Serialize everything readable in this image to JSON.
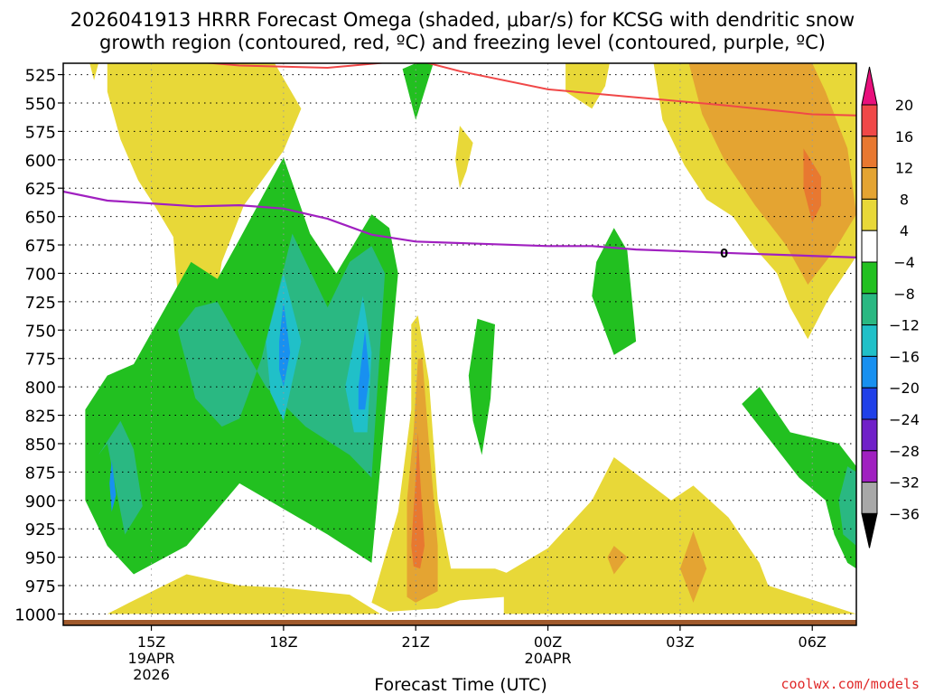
{
  "chart_data": {
    "type": "contour",
    "title_line1": "2026041913 HRRR Forecast Omega (shaded, μbar/s) for KCSG with dendritic snow",
    "title_line2": "growth region (contoured, red, ºC) and freezing level (contoured, purple, ºC)",
    "xlabel": "Forecast Time (UTC)",
    "ylabel": "",
    "x_ticks": [
      {
        "hour": 15,
        "label": "15Z",
        "sub1": "19APR",
        "sub2": "2026"
      },
      {
        "hour": 18,
        "label": "18Z",
        "sub1": "",
        "sub2": ""
      },
      {
        "hour": 21,
        "label": "21Z",
        "sub1": "",
        "sub2": ""
      },
      {
        "hour": 24,
        "label": "00Z",
        "sub1": "20APR",
        "sub2": ""
      },
      {
        "hour": 27,
        "label": "03Z",
        "sub1": "",
        "sub2": ""
      },
      {
        "hour": 30,
        "label": "06Z",
        "sub1": "",
        "sub2": ""
      }
    ],
    "xlim": [
      13,
      31
    ],
    "y_ticks": [
      525,
      550,
      575,
      600,
      625,
      650,
      675,
      700,
      725,
      750,
      775,
      800,
      825,
      850,
      875,
      900,
      925,
      950,
      975,
      1000
    ],
    "ylim": [
      1010,
      515
    ],
    "colorbar": {
      "labels": [
        "20",
        "16",
        "12",
        "8",
        "4",
        "−4",
        "−8",
        "−12",
        "−16",
        "−20",
        "−24",
        "−28",
        "−32",
        "−36"
      ],
      "bands": [
        {
          "from": 20,
          "to": 16,
          "color": "#f04848"
        },
        {
          "from": 16,
          "to": 12,
          "color": "#e87830"
        },
        {
          "from": 12,
          "to": 8,
          "color": "#e4a432"
        },
        {
          "from": 8,
          "to": 4,
          "color": "#e8d838"
        },
        {
          "from": 4,
          "to": -4,
          "color": "#ffffff"
        },
        {
          "from": -4,
          "to": -8,
          "color": "#22c020"
        },
        {
          "from": -8,
          "to": -12,
          "color": "#2ab882"
        },
        {
          "from": -12,
          "to": -16,
          "color": "#20c0c8"
        },
        {
          "from": -16,
          "to": -20,
          "color": "#1890f0"
        },
        {
          "from": -20,
          "to": -24,
          "color": "#2040e8"
        },
        {
          "from": -24,
          "to": -28,
          "color": "#7020c8"
        },
        {
          "from": -28,
          "to": -32,
          "color": "#a020c0"
        },
        {
          "from": -32,
          "to": -36,
          "color": "#a8a8a8"
        }
      ],
      "top_color": "#e8107c",
      "bottom_color": "#000000"
    },
    "freezing_level": {
      "label": "0",
      "label_hour": 28.0,
      "points": [
        [
          13,
          628
        ],
        [
          14,
          636
        ],
        [
          16,
          641
        ],
        [
          17,
          640
        ],
        [
          18,
          643
        ],
        [
          19,
          652
        ],
        [
          20,
          666
        ],
        [
          21,
          672
        ],
        [
          24,
          676
        ],
        [
          25,
          676
        ],
        [
          26,
          679
        ],
        [
          28,
          682
        ],
        [
          31,
          686
        ]
      ]
    },
    "dgz_top": {
      "points": [
        [
          15.8,
          513
        ],
        [
          17,
          517
        ],
        [
          19,
          519
        ],
        [
          21,
          512
        ],
        [
          22,
          522
        ],
        [
          24,
          538
        ],
        [
          26,
          545
        ],
        [
          28,
          552
        ],
        [
          30,
          560
        ],
        [
          31,
          561
        ]
      ]
    },
    "omega_regions": [
      {
        "value": 6,
        "points": [
          [
            14.0,
            515
          ],
          [
            14.0,
            540
          ],
          [
            14.3,
            582
          ],
          [
            14.7,
            618
          ],
          [
            15.1,
            642
          ],
          [
            15.5,
            668
          ],
          [
            15.6,
            720
          ],
          [
            15.9,
            735
          ],
          [
            16.4,
            735
          ],
          [
            16.6,
            690
          ],
          [
            17.1,
            640
          ],
          [
            18.0,
            592
          ],
          [
            18.4,
            555
          ],
          [
            17.8,
            515
          ]
        ]
      },
      {
        "value": 6,
        "points": [
          [
            13.6,
            515
          ],
          [
            13.7,
            530
          ],
          [
            13.8,
            515
          ]
        ]
      },
      {
        "value": 6,
        "points": [
          [
            22.0,
            570
          ],
          [
            22.3,
            585
          ],
          [
            22.15,
            610
          ],
          [
            22.0,
            625
          ],
          [
            21.9,
            600
          ]
        ]
      },
      {
        "value": 6,
        "points": [
          [
            24.4,
            515
          ],
          [
            24.4,
            540
          ],
          [
            25.0,
            555
          ],
          [
            25.3,
            535
          ],
          [
            25.4,
            515
          ]
        ]
      },
      {
        "value": 6,
        "points": [
          [
            26.4,
            515
          ],
          [
            26.6,
            565
          ],
          [
            27.1,
            605
          ],
          [
            27.6,
            635
          ],
          [
            28.2,
            650
          ],
          [
            28.7,
            678
          ],
          [
            29.2,
            700
          ],
          [
            29.5,
            730
          ],
          [
            29.9,
            758
          ],
          [
            30.4,
            720
          ],
          [
            31.0,
            685
          ],
          [
            31.0,
            515
          ]
        ]
      },
      {
        "value": 10,
        "points": [
          [
            27.2,
            515
          ],
          [
            27.5,
            560
          ],
          [
            28.0,
            600
          ],
          [
            28.7,
            640
          ],
          [
            29.4,
            675
          ],
          [
            29.9,
            710
          ],
          [
            30.5,
            680
          ],
          [
            31.0,
            648
          ],
          [
            30.8,
            590
          ],
          [
            30.3,
            540
          ],
          [
            30.0,
            515
          ]
        ]
      },
      {
        "value": 14,
        "points": [
          [
            29.8,
            590
          ],
          [
            30.2,
            615
          ],
          [
            30.2,
            640
          ],
          [
            30.0,
            655
          ],
          [
            29.8,
            625
          ]
        ]
      },
      {
        "value": 6,
        "points": [
          [
            20.0,
            990
          ],
          [
            20.6,
            910
          ],
          [
            20.9,
            820
          ],
          [
            20.9,
            745
          ],
          [
            21.05,
            737
          ],
          [
            21.3,
            795
          ],
          [
            21.5,
            900
          ],
          [
            21.8,
            960
          ],
          [
            22.8,
            960
          ],
          [
            23.5,
            970
          ],
          [
            23.0,
            985
          ],
          [
            22.0,
            988
          ],
          [
            21.5,
            995
          ],
          [
            20.4,
            998
          ]
        ]
      },
      {
        "value": 10,
        "points": [
          [
            20.8,
            985
          ],
          [
            20.8,
            900
          ],
          [
            20.95,
            840
          ],
          [
            21.05,
            775
          ],
          [
            21.15,
            775
          ],
          [
            21.3,
            850
          ],
          [
            21.5,
            940
          ],
          [
            21.5,
            980
          ],
          [
            21.0,
            990
          ]
        ]
      },
      {
        "value": 14,
        "points": [
          [
            20.9,
            940
          ],
          [
            21.0,
            880
          ],
          [
            21.05,
            840
          ],
          [
            21.1,
            880
          ],
          [
            21.2,
            940
          ],
          [
            21.1,
            960
          ],
          [
            20.95,
            958
          ]
        ]
      },
      {
        "value": 6,
        "points": [
          [
            14.0,
            1000
          ],
          [
            14.5,
            990
          ],
          [
            15.8,
            965
          ],
          [
            17.0,
            975
          ],
          [
            18.0,
            977
          ],
          [
            19.5,
            983
          ],
          [
            20.2,
            1000
          ]
        ]
      },
      {
        "value": 6,
        "points": [
          [
            23.0,
            1000
          ],
          [
            23.0,
            965
          ],
          [
            24.0,
            942
          ],
          [
            25.0,
            900
          ],
          [
            25.5,
            862
          ],
          [
            26.8,
            900
          ],
          [
            27.3,
            887
          ],
          [
            28.1,
            915
          ],
          [
            28.8,
            955
          ],
          [
            29.0,
            975
          ],
          [
            31.0,
            1000
          ]
        ]
      },
      {
        "value": 10,
        "points": [
          [
            25.5,
            940
          ],
          [
            25.8,
            950
          ],
          [
            25.5,
            965
          ],
          [
            25.35,
            950
          ]
        ]
      },
      {
        "value": 10,
        "points": [
          [
            27.3,
            927
          ],
          [
            27.6,
            960
          ],
          [
            27.3,
            990
          ],
          [
            27.0,
            960
          ]
        ]
      },
      {
        "value": -6,
        "points": [
          [
            21.0,
            515
          ],
          [
            21.4,
            515
          ],
          [
            21.0,
            565
          ],
          [
            20.7,
            520
          ]
        ]
      },
      {
        "value": -6,
        "points": [
          [
            22.4,
            740
          ],
          [
            22.8,
            745
          ],
          [
            22.7,
            810
          ],
          [
            22.5,
            860
          ],
          [
            22.3,
            830
          ],
          [
            22.2,
            790
          ]
        ]
      },
      {
        "value": -6,
        "points": [
          [
            25.5,
            660
          ],
          [
            25.8,
            680
          ],
          [
            26.0,
            760
          ],
          [
            25.5,
            772
          ],
          [
            25.0,
            720
          ],
          [
            25.1,
            690
          ]
        ]
      },
      {
        "value": -6,
        "points": [
          [
            14.0,
            940
          ],
          [
            14.6,
            965
          ],
          [
            15.8,
            940
          ],
          [
            17.0,
            885
          ],
          [
            19.0,
            930
          ],
          [
            20.0,
            955
          ],
          [
            20.6,
            700
          ],
          [
            20.4,
            660
          ],
          [
            20.0,
            648
          ],
          [
            19.2,
            700
          ],
          [
            18.6,
            665
          ],
          [
            18.0,
            598
          ],
          [
            17.0,
            670
          ],
          [
            16.5,
            705
          ],
          [
            15.9,
            690
          ],
          [
            14.6,
            780
          ],
          [
            14.0,
            790
          ],
          [
            13.5,
            820
          ],
          [
            13.5,
            900
          ]
        ]
      },
      {
        "value": -10,
        "points": [
          [
            14.0,
            850
          ],
          [
            14.4,
            930
          ],
          [
            14.8,
            905
          ],
          [
            14.6,
            855
          ],
          [
            14.3,
            830
          ],
          [
            13.8,
            860
          ]
        ]
      },
      {
        "value": -10,
        "points": [
          [
            15.6,
            750
          ],
          [
            16.0,
            810
          ],
          [
            16.6,
            835
          ],
          [
            17.0,
            828
          ],
          [
            17.5,
            775
          ],
          [
            18.2,
            665
          ],
          [
            19.0,
            730
          ],
          [
            19.5,
            690
          ],
          [
            20.0,
            676
          ],
          [
            20.3,
            700
          ],
          [
            20.0,
            880
          ],
          [
            19.5,
            860
          ],
          [
            18.5,
            835
          ],
          [
            17.6,
            800
          ],
          [
            16.5,
            725
          ],
          [
            16.0,
            730
          ]
        ]
      },
      {
        "value": -14,
        "points": [
          [
            17.6,
            760
          ],
          [
            18.0,
            700
          ],
          [
            18.4,
            760
          ],
          [
            18.0,
            830
          ],
          [
            17.7,
            805
          ]
        ]
      },
      {
        "value": -14,
        "points": [
          [
            19.4,
            800
          ],
          [
            19.8,
            720
          ],
          [
            20.0,
            770
          ],
          [
            19.9,
            840
          ],
          [
            19.6,
            840
          ]
        ]
      },
      {
        "value": -18,
        "points": [
          [
            17.9,
            760
          ],
          [
            18.0,
            725
          ],
          [
            18.15,
            770
          ],
          [
            18.0,
            800
          ],
          [
            17.9,
            785
          ]
        ]
      },
      {
        "value": -18,
        "points": [
          [
            19.7,
            800
          ],
          [
            19.85,
            750
          ],
          [
            19.95,
            790
          ],
          [
            19.85,
            820
          ],
          [
            19.7,
            820
          ]
        ]
      },
      {
        "value": -18,
        "points": [
          [
            14.05,
            885
          ],
          [
            14.1,
            865
          ],
          [
            14.2,
            895
          ],
          [
            14.1,
            910
          ]
        ]
      },
      {
        "value": -6,
        "points": [
          [
            28.4,
            815
          ],
          [
            28.8,
            800
          ],
          [
            29.5,
            840
          ],
          [
            30.6,
            850
          ],
          [
            31.0,
            870
          ],
          [
            31.0,
            960
          ],
          [
            30.8,
            955
          ],
          [
            30.5,
            930
          ],
          [
            30.3,
            900
          ],
          [
            29.7,
            880
          ],
          [
            29.3,
            860
          ]
        ]
      },
      {
        "value": -10,
        "points": [
          [
            30.7,
            930
          ],
          [
            30.6,
            900
          ],
          [
            30.8,
            870
          ],
          [
            31.0,
            875
          ],
          [
            31.0,
            940
          ]
        ]
      }
    ],
    "freezing_line_color": "#a020c0",
    "dgz_line_color": "#f04848",
    "ground_color": "#a05a2c"
  },
  "footer": {
    "credit": "coolwx.com/models"
  }
}
